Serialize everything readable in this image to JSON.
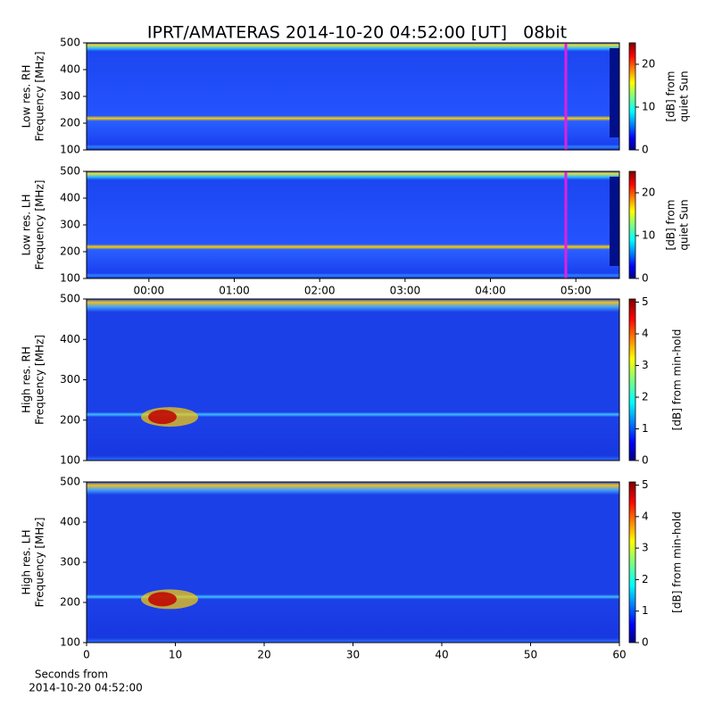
{
  "title": "IPRT/AMATERAS 2014-10-20 04:52:00 [UT]   08bit",
  "chart_data": [
    {
      "type": "heatmap",
      "ylabel": [
        "Low res. RH",
        "Frequency [MHz]"
      ],
      "ylim": [
        100,
        500
      ],
      "yticks": [
        100,
        200,
        300,
        400,
        500
      ],
      "xlim": [
        -0.73,
        5.51
      ],
      "colorbar_label": [
        "[dB] from",
        "quiet Sun"
      ],
      "clim": [
        0,
        25
      ],
      "cticks": [
        0,
        10,
        20
      ]
    },
    {
      "type": "heatmap",
      "ylabel": [
        "Low res. LH",
        "Frequency [MHz]"
      ],
      "ylim": [
        100,
        500
      ],
      "yticks": [
        100,
        200,
        300,
        400,
        500
      ],
      "xlim": [
        -0.73,
        5.51
      ],
      "xticks": [
        {
          "value": 0,
          "label": "00:00"
        },
        {
          "value": 1,
          "label": "01:00"
        },
        {
          "value": 2,
          "label": "02:00"
        },
        {
          "value": 3,
          "label": "03:00"
        },
        {
          "value": 4,
          "label": "04:00"
        },
        {
          "value": 5,
          "label": "05:00"
        }
      ],
      "colorbar_label": [
        "[dB] from",
        "quiet Sun"
      ],
      "clim": [
        0,
        25
      ],
      "cticks": [
        0,
        10,
        20
      ]
    },
    {
      "type": "heatmap",
      "ylabel": [
        "High res. RH",
        "Frequency [MHz]"
      ],
      "ylim": [
        100,
        500
      ],
      "yticks": [
        100,
        200,
        300,
        400,
        500
      ],
      "xlim": [
        0,
        60
      ],
      "colorbar_label": [
        "[dB] from min-hold"
      ],
      "clim": [
        0,
        5.1
      ],
      "cticks": [
        0,
        1,
        2,
        3,
        4,
        5
      ]
    },
    {
      "type": "heatmap",
      "ylabel": [
        "High res. LH",
        "Frequency [MHz]"
      ],
      "ylim": [
        100,
        500
      ],
      "yticks": [
        100,
        200,
        300,
        400,
        500
      ],
      "xlim": [
        0,
        60
      ],
      "xticks": [
        0,
        10,
        20,
        30,
        40,
        50,
        60
      ],
      "xlabel": [
        "Seconds from",
        "2014-10-20 04:52:00"
      ],
      "colorbar_label": [
        "[dB] from min-hold"
      ],
      "clim": [
        0,
        5.1
      ],
      "cticks": [
        0,
        1,
        2,
        3,
        4,
        5
      ]
    }
  ]
}
